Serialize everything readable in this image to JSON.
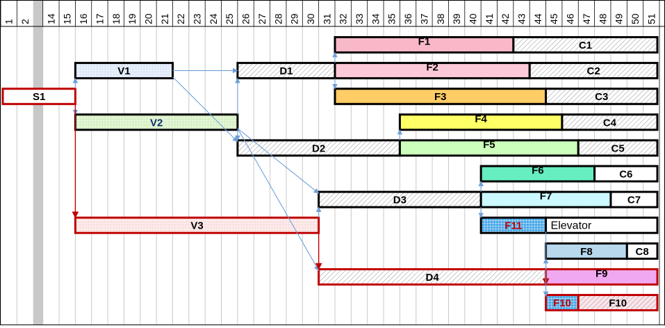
{
  "timeline": {
    "columns": [
      "1",
      "2",
      "14",
      "15",
      "16",
      "17",
      "18",
      "19",
      "20",
      "21",
      "22",
      "23",
      "24",
      "25",
      "26",
      "27",
      "28",
      "29",
      "30",
      "31",
      "32",
      "33",
      "34",
      "35",
      "36",
      "37",
      "38",
      "39",
      "40",
      "41",
      "42",
      "43",
      "44",
      "45",
      "46",
      "47",
      "48",
      "49",
      "50",
      "51"
    ],
    "break_after_column": "2"
  },
  "colors": {
    "outline": "#000000",
    "critical_outline": "#c00000",
    "dependency_arrow": "#6fa0d8",
    "critical_arrow": "#c00000",
    "break_band": "#c8c8c8",
    "gridline": "#c8c8c8",
    "hatch_line": "#9a9a9a"
  },
  "tasks": [
    {
      "id": "S1",
      "label": "S1",
      "start": "1",
      "end": "15",
      "row": 3,
      "fill": "#ffffff",
      "pattern": "none",
      "outline": "critical",
      "label_color": "#000000",
      "label_pos": "center"
    },
    {
      "id": "V1",
      "label": "V1",
      "start": "16",
      "end": "21",
      "row": 2,
      "fill": "#dbe7f7",
      "pattern": "grid",
      "outline": "normal",
      "label_color": "#000000",
      "label_pos": "center"
    },
    {
      "id": "V2",
      "label": "V2",
      "start": "16",
      "end": "25",
      "row": 4,
      "fill": "#d6f0c2",
      "pattern": "grid",
      "outline": "normal",
      "label_color": "#0d2e6e",
      "label_pos": "center"
    },
    {
      "id": "V3",
      "label": "V3",
      "start": "16",
      "end": "30",
      "row": 8,
      "fill": "#fbe0e0",
      "pattern": "grid",
      "outline": "critical",
      "label_color": "#000000",
      "label_pos": "center"
    },
    {
      "id": "D1",
      "label": "D1",
      "start": "26",
      "end": "31",
      "row": 2,
      "fill": "#ffffff",
      "pattern": "hatch",
      "outline": "normal",
      "label_color": "#000000",
      "label_pos": "center"
    },
    {
      "id": "D2",
      "label": "D2",
      "start": "26",
      "end": "35",
      "row": 5,
      "fill": "#ffffff",
      "pattern": "hatch",
      "outline": "normal",
      "label_color": "#000000",
      "label_pos": "center"
    },
    {
      "id": "D3",
      "label": "D3",
      "start": "31",
      "end": "40",
      "row": 7,
      "fill": "#ffffff",
      "pattern": "hatch",
      "outline": "normal",
      "label_color": "#000000",
      "label_pos": "center"
    },
    {
      "id": "D4",
      "label": "D4",
      "start": "31",
      "end": "44",
      "row": 10,
      "fill": "#ffffff",
      "pattern": "hatch",
      "outline": "critical",
      "label_color": "#000000",
      "label_pos": "center"
    },
    {
      "id": "F1",
      "label": "F1",
      "start": "32",
      "end": "42",
      "row": 1,
      "fill": "#f9b8c8",
      "pattern": "none",
      "outline": "normal",
      "label_color": "#000000",
      "label_pos": "top"
    },
    {
      "id": "C1",
      "label": "C1",
      "start": "43",
      "end": "51",
      "row": 1,
      "fill": "#ffffff",
      "pattern": "hatch",
      "outline": "normal",
      "label_color": "#000000",
      "label_pos": "center"
    },
    {
      "id": "F2",
      "label": "F2",
      "start": "32",
      "end": "43",
      "row": 2,
      "fill": "#fcc9d8",
      "pattern": "none",
      "outline": "normal",
      "label_color": "#000000",
      "label_pos": "top"
    },
    {
      "id": "C2",
      "label": "C2",
      "start": "44",
      "end": "51",
      "row": 2,
      "fill": "#ffffff",
      "pattern": "hatch",
      "outline": "normal",
      "label_color": "#000000",
      "label_pos": "center"
    },
    {
      "id": "F3",
      "label": "F3",
      "start": "32",
      "end": "44",
      "row": 3,
      "fill": "#ffcc66",
      "pattern": "none",
      "outline": "normal",
      "label_color": "#000000",
      "label_pos": "center"
    },
    {
      "id": "C3",
      "label": "C3",
      "start": "45",
      "end": "51",
      "row": 3,
      "fill": "#ffffff",
      "pattern": "hatch",
      "outline": "normal",
      "label_color": "#000000",
      "label_pos": "center"
    },
    {
      "id": "F4",
      "label": "F4",
      "start": "36",
      "end": "45",
      "row": 4,
      "fill": "#ffff66",
      "pattern": "none",
      "outline": "normal",
      "label_color": "#000000",
      "label_pos": "top"
    },
    {
      "id": "C4",
      "label": "C4",
      "start": "46",
      "end": "51",
      "row": 4,
      "fill": "#ffffff",
      "pattern": "hatch",
      "outline": "normal",
      "label_color": "#000000",
      "label_pos": "center"
    },
    {
      "id": "F5",
      "label": "F5",
      "start": "36",
      "end": "46",
      "row": 5,
      "fill": "#ccffbb",
      "pattern": "none",
      "outline": "normal",
      "label_color": "#000000",
      "label_pos": "top"
    },
    {
      "id": "C5",
      "label": "C5",
      "start": "47",
      "end": "51",
      "row": 5,
      "fill": "#ffffff",
      "pattern": "hatch",
      "outline": "normal",
      "label_color": "#000000",
      "label_pos": "center"
    },
    {
      "id": "F6",
      "label": "F6",
      "start": "41",
      "end": "47",
      "row": 6,
      "fill": "#66eec0",
      "pattern": "none",
      "outline": "normal",
      "label_color": "#000000",
      "label_pos": "top"
    },
    {
      "id": "C6",
      "label": "C6",
      "start": "48",
      "end": "51",
      "row": 6,
      "fill": "#ffffff",
      "pattern": "none",
      "outline": "normal",
      "label_color": "#000000",
      "label_pos": "center"
    },
    {
      "id": "F7",
      "label": "F7",
      "start": "41",
      "end": "48",
      "row": 7,
      "fill": "#ccf8ff",
      "pattern": "none",
      "outline": "normal",
      "label_color": "#000000",
      "label_pos": "top"
    },
    {
      "id": "C7",
      "label": "C7",
      "start": "49",
      "end": "51",
      "row": 7,
      "fill": "#ffffff",
      "pattern": "none",
      "outline": "normal",
      "label_color": "#000000",
      "label_pos": "center"
    },
    {
      "id": "F11",
      "label": "F11",
      "start": "41",
      "end": "44",
      "row": 8,
      "fill": "#4aa8e8",
      "pattern": "grid",
      "outline": "normal",
      "label_color": "#c00000",
      "label_pos": "center"
    },
    {
      "id": "ELEV",
      "label": "Elevator",
      "start": "45",
      "end": "51",
      "row": 8,
      "fill": "#ffffff",
      "pattern": "none",
      "outline": "normal",
      "label_color": "#000000",
      "label_pos": "center"
    },
    {
      "id": "F8",
      "label": "F8",
      "start": "45",
      "end": "49",
      "row": 9,
      "fill": "#b8d8ee",
      "pattern": "none",
      "outline": "normal",
      "label_color": "#000000",
      "label_pos": "center"
    },
    {
      "id": "C8",
      "label": "C8",
      "start": "50",
      "end": "51",
      "row": 9,
      "fill": "#ffffff",
      "pattern": "none",
      "outline": "normal",
      "label_color": "#000000",
      "label_pos": "center"
    },
    {
      "id": "F9",
      "label": "F9",
      "start": "45",
      "end": "51",
      "row": 10,
      "fill": "#f0a8f0",
      "pattern": "none",
      "outline": "critical",
      "label_color": "#000000",
      "label_pos": "top"
    },
    {
      "id": "F10a",
      "label": "F10",
      "start": "45",
      "end": "46",
      "row": 11,
      "fill": "#4aa8e8",
      "pattern": "grid",
      "outline": "critical",
      "label_color": "#c00000",
      "label_pos": "center"
    },
    {
      "id": "F10b",
      "label": "F10",
      "start": "47",
      "end": "51",
      "row": 11,
      "fill": "#fde4ea",
      "pattern": "hatch",
      "outline": "critical",
      "label_color": "#000000",
      "label_pos": "center"
    }
  ],
  "links": [
    {
      "from": "S1",
      "to": "V1",
      "kind": "normal",
      "route": "v"
    },
    {
      "from": "S1",
      "to": "V2",
      "kind": "normal",
      "route": "v"
    },
    {
      "from": "S1",
      "to": "V3",
      "kind": "critical",
      "route": "v"
    },
    {
      "from": "V1",
      "to": "D1",
      "kind": "normal",
      "route": "h"
    },
    {
      "from": "V1",
      "to": "D2",
      "kind": "normal",
      "route": "diag"
    },
    {
      "from": "V2",
      "to": "D1",
      "kind": "normal",
      "route": "v"
    },
    {
      "from": "V2",
      "to": "D2",
      "kind": "normal",
      "route": "v"
    },
    {
      "from": "V2",
      "to": "D3",
      "kind": "normal",
      "route": "diag"
    },
    {
      "from": "V2",
      "to": "D4",
      "kind": "normal",
      "route": "diag"
    },
    {
      "from": "V3",
      "to": "D3",
      "kind": "normal",
      "route": "v"
    },
    {
      "from": "V3",
      "to": "D4",
      "kind": "critical",
      "route": "v"
    },
    {
      "from": "D1",
      "to": "F1",
      "kind": "normal",
      "route": "v"
    },
    {
      "from": "D1",
      "to": "F3",
      "kind": "normal",
      "route": "v"
    },
    {
      "from": "D2",
      "to": "F4",
      "kind": "normal",
      "route": "v"
    },
    {
      "from": "D3",
      "to": "F6",
      "kind": "normal",
      "route": "v"
    },
    {
      "from": "D3",
      "to": "F11",
      "kind": "normal",
      "route": "v"
    },
    {
      "from": "D4",
      "to": "F8",
      "kind": "normal",
      "route": "v"
    },
    {
      "from": "D4",
      "to": "F10a",
      "kind": "normal",
      "route": "diag"
    },
    {
      "from": "D4",
      "to": "F9",
      "kind": "critical",
      "route": "v"
    },
    {
      "from": "F11",
      "to": "F10a",
      "kind": "normal",
      "route": "diag"
    }
  ]
}
